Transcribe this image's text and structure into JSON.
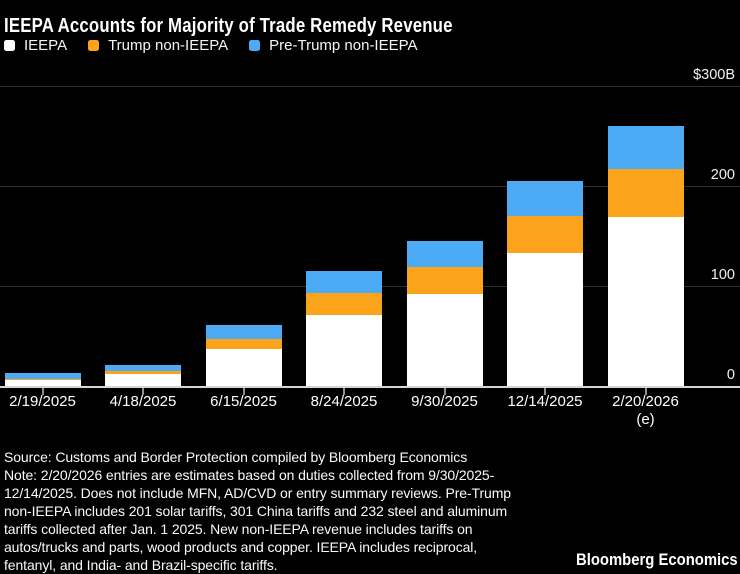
{
  "title": "IEEPA Accounts for Majority of Trade Remedy Revenue",
  "legend": {
    "items": [
      {
        "label": "IEEPA",
        "color": "#ffffff"
      },
      {
        "label": "Trump non-IEEPA",
        "color": "#fca31c"
      },
      {
        "label": "Pre-Trump non-IEEPA",
        "color": "#4dabf5"
      }
    ]
  },
  "chart_data": {
    "type": "bar",
    "stacked": true,
    "title": "IEEPA Accounts for Majority of Trade Remedy Revenue",
    "unit": "billions of USD",
    "categories": [
      "2/19/2025",
      "4/18/2025",
      "6/15/2025",
      "8/24/2025",
      "9/30/2025",
      "12/14/2025",
      "2/20/2026"
    ],
    "category_sublabels": [
      "",
      "",
      "",
      "",
      "",
      "",
      "(e)"
    ],
    "series": [
      {
        "name": "IEEPA",
        "color": "#ffffff",
        "values": [
          6.5,
          12,
          37,
          71,
          92,
          133,
          169
        ]
      },
      {
        "name": "Trump non-IEEPA",
        "color": "#fca31c",
        "values": [
          0.5,
          3,
          10,
          22,
          27,
          37,
          48
        ]
      },
      {
        "name": "Pre-Trump non-IEEPA",
        "color": "#4dabf5",
        "values": [
          6,
          6,
          14,
          22,
          26,
          35,
          43
        ]
      }
    ],
    "totals": [
      13,
      21,
      61,
      115,
      145,
      205,
      260
    ],
    "ylim": [
      0,
      300
    ],
    "y_ticks": [
      {
        "value": 0,
        "label": "0"
      },
      {
        "value": 100,
        "label": "100"
      },
      {
        "value": 200,
        "label": "200"
      },
      {
        "value": 300,
        "label": "$300B"
      }
    ],
    "grid": "horizontal",
    "legend_position": "top-left",
    "colors": {
      "background": "#000000",
      "gridline": "#2f2f2f",
      "axis_line": "#d6d6d6"
    }
  },
  "footer": {
    "lines": [
      "Source: Customs and Border Protection compiled by Bloomberg Economics",
      "Note: 2/20/2026 entries are estimates based on duties collected from 9/30/2025-",
      "12/14/2025. Does not include MFN, AD/CVD or entry summary reviews. Pre-Trump",
      "non-IEEPA includes 201 solar tariffs, 301 China tariffs and 232 steel and aluminum",
      "tariffs collected after Jan. 1 2025. New non-IEEPA revenue includes tariffs on",
      "autos/trucks and parts, wood products and copper. IEEPA includes reciprocal,",
      "fentanyl, and India- and Brazil-specific tariffs."
    ]
  },
  "branding": "Bloomberg Economics"
}
